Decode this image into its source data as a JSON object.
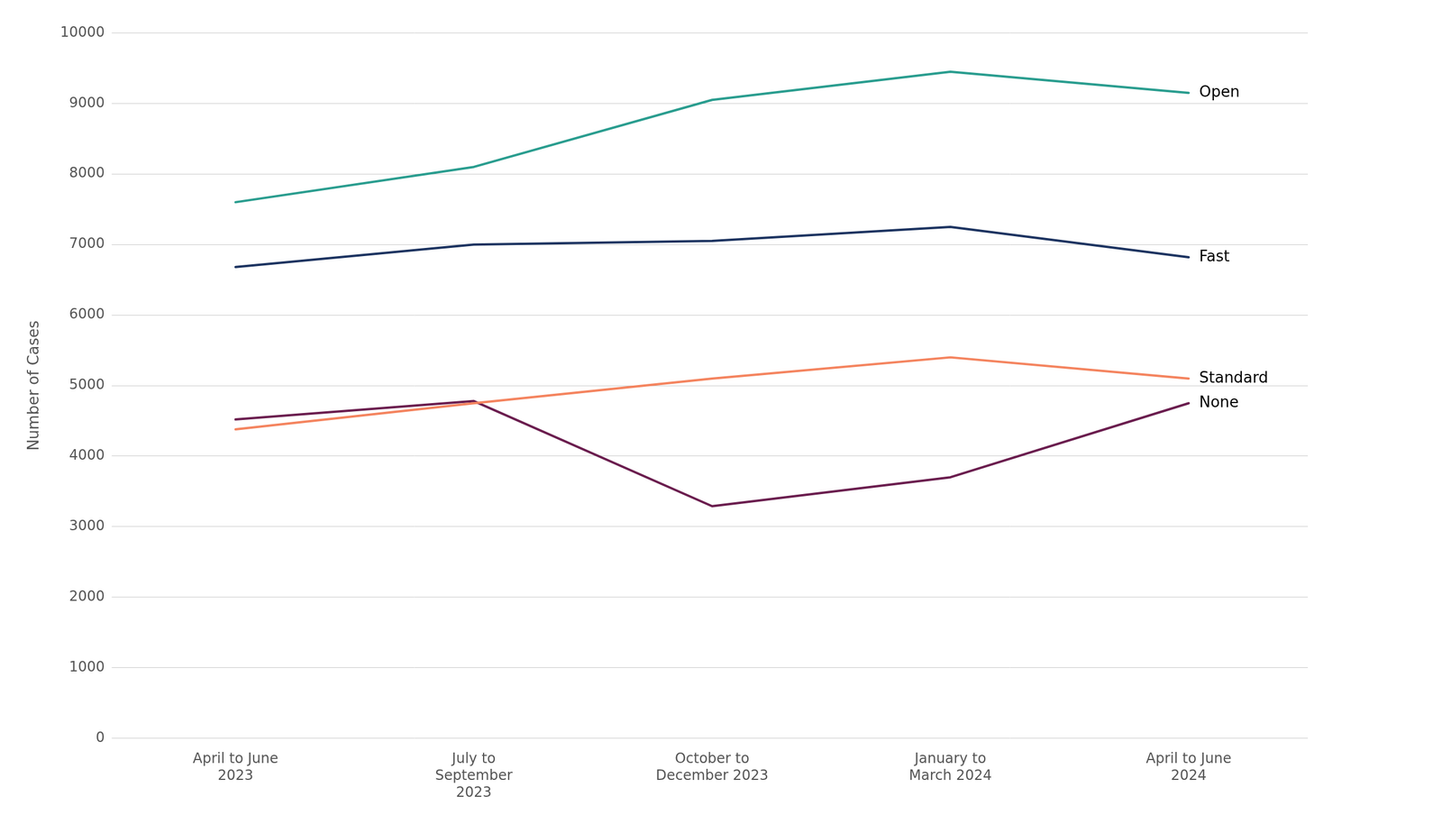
{
  "chart_data": {
    "type": "line",
    "categories": [
      "April to June\n2023",
      "July to\nSeptember\n2023",
      "October to\nDecember 2023",
      "January to\nMarch 2024",
      "April to June\n2024"
    ],
    "series": [
      {
        "name": "Open",
        "color": "#2a9d8f",
        "values": [
          7600,
          8100,
          9050,
          9450,
          9150
        ]
      },
      {
        "name": "Fast",
        "color": "#1d3461",
        "values": [
          6680,
          7000,
          7050,
          7250,
          6820
        ]
      },
      {
        "name": "Standard",
        "color": "#f4845f",
        "values": [
          4380,
          4750,
          5100,
          5400,
          5100
        ]
      },
      {
        "name": "None",
        "color": "#6b1e4f",
        "values": [
          4520,
          4780,
          3290,
          3700,
          4750
        ]
      }
    ],
    "y_label": "Number of Cases",
    "ylim": [
      0,
      10000
    ],
    "yticks": [
      0,
      1000,
      2000,
      3000,
      4000,
      5000,
      6000,
      7000,
      8000,
      9000,
      10000
    ],
    "grid": true
  }
}
